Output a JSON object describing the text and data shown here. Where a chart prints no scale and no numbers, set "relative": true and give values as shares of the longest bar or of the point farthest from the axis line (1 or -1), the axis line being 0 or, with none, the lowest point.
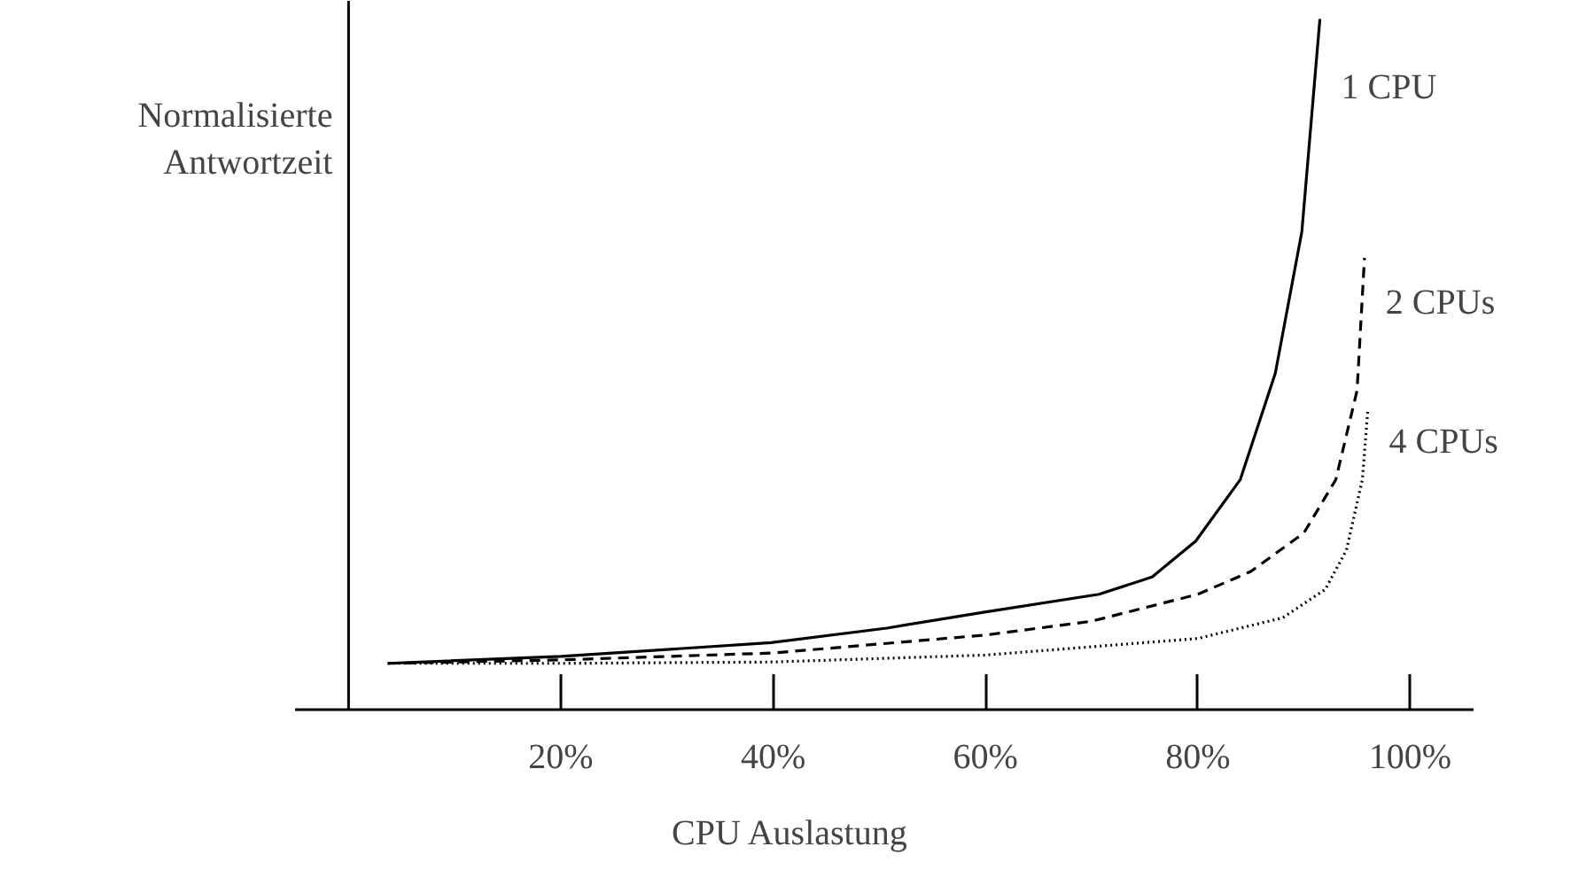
{
  "chart_data": {
    "type": "line",
    "relative": true,
    "xlabel": "CPU Auslastung",
    "ylabel": "Normalisierte\nAntwortzeit",
    "xlim": [
      -5,
      106
    ],
    "xticks": [
      {
        "value": 20,
        "label": "20%"
      },
      {
        "value": 40,
        "label": "40%"
      },
      {
        "value": 60,
        "label": "60%"
      },
      {
        "value": 80,
        "label": "80%"
      },
      {
        "value": 100,
        "label": "100%"
      }
    ],
    "grid": false,
    "legend": false,
    "marker": "none",
    "series": [
      {
        "name": "1 CPU",
        "color": "#000000",
        "line_style": "solid",
        "x": [
          3.7,
          20,
          39.8,
          50.7,
          59.8,
          70.7,
          75.7,
          79.8,
          84,
          87.3,
          89.8,
          91.5
        ],
        "values": [
          0.067,
          0.077,
          0.097,
          0.118,
          0.141,
          0.167,
          0.192,
          0.244,
          0.333,
          0.487,
          0.692,
          1.0
        ]
      },
      {
        "name": "2 CPUs",
        "color": "#000000",
        "line_style": "dashed",
        "x": [
          3.7,
          20,
          40,
          60,
          70,
          80,
          85,
          90,
          93,
          95,
          95.7
        ],
        "values": [
          0.067,
          0.072,
          0.082,
          0.108,
          0.128,
          0.167,
          0.2,
          0.256,
          0.333,
          0.462,
          0.654
        ]
      },
      {
        "name": "4 CPUs",
        "color": "#000000",
        "line_style": "dotted",
        "x": [
          3.7,
          20,
          40,
          60,
          80,
          88,
          92,
          94,
          95.5,
          96
        ],
        "values": [
          0.067,
          0.067,
          0.069,
          0.079,
          0.103,
          0.133,
          0.174,
          0.231,
          0.333,
          0.431
        ]
      }
    ]
  }
}
